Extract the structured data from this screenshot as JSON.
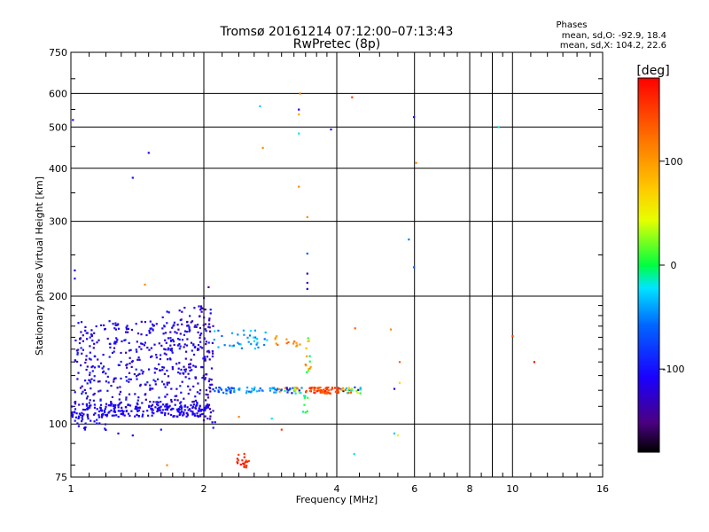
{
  "header": {
    "title_line1": "Tromsø 20161214 07:12:00–07:13:43",
    "title_line2": "RwPretec (8p)"
  },
  "stats": {
    "heading": "Phases",
    "line_o": "mean, sd,O: -92.9, 18.4",
    "line_x": "mean, sd,X: 104.2, 22.6"
  },
  "colorbar": {
    "unit_label": "[deg]",
    "min": -180,
    "max": 180,
    "ticks": [
      {
        "value": 100,
        "label": "100"
      },
      {
        "value": 0,
        "label": "0"
      },
      {
        "value": -100,
        "label": "-100"
      }
    ]
  },
  "chart_data": {
    "type": "scatter",
    "title": "Tromsø 20161214 07:12:00–07:13:43",
    "subtitle": "RwPretec (8p)",
    "xlabel": "Frequency [MHz]",
    "ylabel": "Stationary phase Virtual Height [km]",
    "xscale": "log",
    "yscale": "log",
    "xlim": [
      1,
      16
    ],
    "ylim": [
      75,
      750
    ],
    "grid": true,
    "colorbar": "right",
    "x_ticks": [
      {
        "value": 1,
        "label": "1"
      },
      {
        "value": 2,
        "label": "2"
      },
      {
        "value": 4,
        "label": "4"
      },
      {
        "value": 6,
        "label": "6"
      },
      {
        "value": 8,
        "label": "8"
      },
      {
        "value": 10,
        "label": "10"
      },
      {
        "value": 16,
        "label": "16"
      }
    ],
    "x_gridlines": [
      2,
      4,
      6,
      8,
      9,
      10
    ],
    "y_ticks": [
      {
        "value": 75,
        "label": "75"
      },
      {
        "value": 100,
        "label": "100"
      },
      {
        "value": 200,
        "label": "200"
      },
      {
        "value": 300,
        "label": "300"
      },
      {
        "value": 400,
        "label": "400"
      },
      {
        "value": 500,
        "label": "500"
      },
      {
        "value": 600,
        "label": "600"
      },
      {
        "value": 750,
        "label": "750"
      }
    ],
    "y_gridlines": [
      100,
      200,
      300,
      400,
      500,
      600
    ],
    "points": [
      {
        "x": 1.01,
        "y": 520,
        "phase": -100
      },
      {
        "x": 1.02,
        "y": 230,
        "phase": -110
      },
      {
        "x": 1.02,
        "y": 220,
        "phase": -100
      },
      {
        "x": 1.38,
        "y": 380,
        "phase": -100
      },
      {
        "x": 1.5,
        "y": 435,
        "phase": -110
      },
      {
        "x": 1.47,
        "y": 213,
        "phase": 110
      },
      {
        "x": 2.68,
        "y": 560,
        "phase": -30
      },
      {
        "x": 2.72,
        "y": 447,
        "phase": 110
      },
      {
        "x": 3.28,
        "y": 550,
        "phase": -110
      },
      {
        "x": 3.28,
        "y": 536,
        "phase": 90
      },
      {
        "x": 3.28,
        "y": 483,
        "phase": -20
      },
      {
        "x": 3.28,
        "y": 362,
        "phase": 110
      },
      {
        "x": 3.43,
        "y": 307,
        "phase": 110
      },
      {
        "x": 3.3,
        "y": 600,
        "phase": 120
      },
      {
        "x": 3.88,
        "y": 494,
        "phase": -110
      },
      {
        "x": 4.33,
        "y": 588,
        "phase": 150
      },
      {
        "x": 5.98,
        "y": 528,
        "phase": -100
      },
      {
        "x": 6.05,
        "y": 412,
        "phase": 110
      },
      {
        "x": 5.82,
        "y": 272,
        "phase": -50
      },
      {
        "x": 5.98,
        "y": 234,
        "phase": -60
      },
      {
        "x": 9.3,
        "y": 500,
        "phase": -20
      },
      {
        "x": 3.43,
        "y": 252,
        "phase": -60
      },
      {
        "x": 3.43,
        "y": 226,
        "phase": -140
      },
      {
        "x": 3.43,
        "y": 215,
        "phase": -130
      },
      {
        "x": 3.43,
        "y": 208,
        "phase": -120
      },
      {
        "x": 2.05,
        "y": 210,
        "phase": -150
      },
      {
        "x": 2.0,
        "y": 198,
        "phase": -140
      },
      {
        "x": 10.0,
        "y": 161,
        "phase": 150
      },
      {
        "x": 11.2,
        "y": 140,
        "phase": 175
      },
      {
        "x": 5.3,
        "y": 167,
        "phase": 110
      },
      {
        "x": 5.55,
        "y": 140,
        "phase": 130
      },
      {
        "x": 4.4,
        "y": 168,
        "phase": 130
      },
      {
        "x": 5.55,
        "y": 125,
        "phase": 60
      },
      {
        "x": 5.4,
        "y": 121,
        "phase": -110
      },
      {
        "x": 5.4,
        "y": 95,
        "phase": -30
      },
      {
        "x": 5.5,
        "y": 94,
        "phase": 50
      },
      {
        "x": 4.38,
        "y": 85,
        "phase": -20
      },
      {
        "x": 3.0,
        "y": 97,
        "phase": 150
      },
      {
        "x": 2.1,
        "y": 98,
        "phase": -100
      },
      {
        "x": 2.12,
        "y": 101,
        "phase": -110
      },
      {
        "x": 1.28,
        "y": 95,
        "phase": -110
      },
      {
        "x": 1.38,
        "y": 94,
        "phase": -120
      },
      {
        "x": 1.65,
        "y": 80,
        "phase": 110
      },
      {
        "x": 1.6,
        "y": 97,
        "phase": -100
      },
      {
        "x": 2.85,
        "y": 103,
        "phase": -20
      },
      {
        "x": 2.4,
        "y": 104,
        "phase": 110
      }
    ],
    "clusters": [
      {
        "x": [
          1.0,
          2.05
        ],
        "y": [
          104,
          112
        ],
        "phase": [
          -120,
          -100
        ],
        "count": 260
      },
      {
        "x": [
          1.02,
          2.1
        ],
        "y": [
          112,
          175
        ],
        "phase": [
          -135,
          -90
        ],
        "count": 430
      },
      {
        "x": [
          1.6,
          2.1
        ],
        "y": [
          150,
          190
        ],
        "phase": [
          -130,
          -95
        ],
        "count": 45
      },
      {
        "x": [
          1.95,
          2.1
        ],
        "y": [
          100,
          192
        ],
        "phase": [
          -150,
          -120
        ],
        "count": 40
      },
      {
        "x": [
          1.02,
          1.2
        ],
        "y": [
          96,
          104
        ],
        "phase": [
          -110,
          -100
        ],
        "count": 25
      },
      {
        "x": [
          2.1,
          2.35
        ],
        "y": [
          118,
          122
        ],
        "phase": [
          -90,
          -40
        ],
        "count": 26
      },
      {
        "x": [
          2.35,
          2.95
        ],
        "y": [
          118,
          122
        ],
        "phase": [
          -60,
          -25
        ],
        "count": 30
      },
      {
        "x": [
          2.95,
          3.35
        ],
        "y": [
          118,
          122
        ],
        "phase": [
          -140,
          120
        ],
        "count": 30
      },
      {
        "x": [
          3.4,
          4.05
        ],
        "y": [
          118,
          122
        ],
        "phase": [
          130,
          165
        ],
        "count": 65
      },
      {
        "x": [
          4.05,
          4.6
        ],
        "y": [
          118,
          122
        ],
        "phase": [
          -140,
          140
        ],
        "count": 26
      },
      {
        "x": [
          2.1,
          2.8
        ],
        "y": [
          150,
          167
        ],
        "phase": [
          -60,
          -20
        ],
        "count": 36
      },
      {
        "x": [
          2.9,
          3.3
        ],
        "y": [
          152,
          162
        ],
        "phase": [
          95,
          130
        ],
        "count": 14
      },
      {
        "x": [
          3.38,
          3.5
        ],
        "y": [
          130,
          160
        ],
        "phase": [
          -20,
          120
        ],
        "count": 14
      },
      {
        "x": [
          3.35,
          3.5
        ],
        "y": [
          105,
          117
        ],
        "phase": [
          -30,
          10
        ],
        "count": 8
      },
      {
        "x": [
          2.35,
          2.55
        ],
        "y": [
          80,
          86
        ],
        "phase": [
          140,
          175
        ],
        "count": 14
      },
      {
        "x": [
          2.45,
          2.55
        ],
        "y": [
          78,
          82
        ],
        "phase": [
          155,
          180
        ],
        "count": 6
      }
    ]
  }
}
